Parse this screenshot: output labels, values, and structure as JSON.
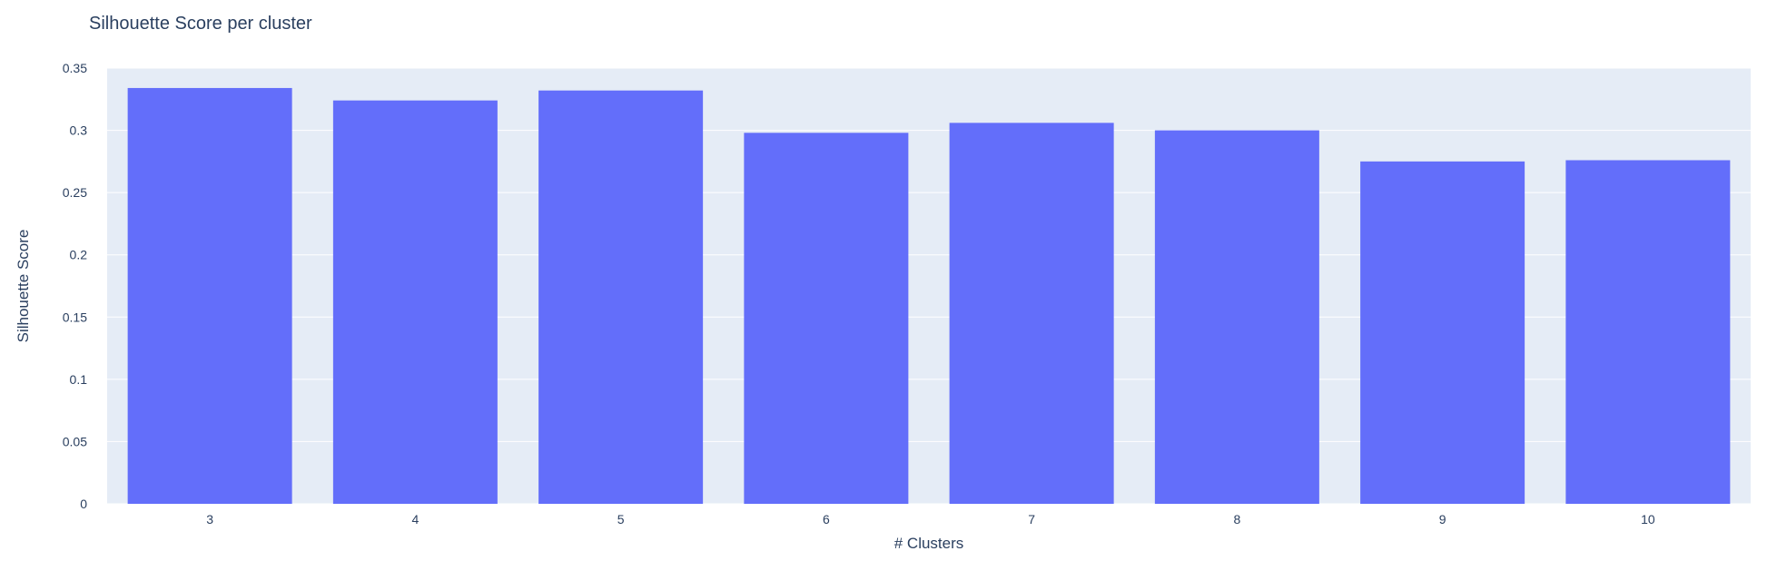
{
  "chart_data": {
    "type": "bar",
    "title": "Silhouette Score per cluster",
    "xlabel": "# Clusters",
    "ylabel": "Silhouette Score",
    "categories": [
      "3",
      "4",
      "5",
      "6",
      "7",
      "8",
      "9",
      "10"
    ],
    "values": [
      0.334,
      0.324,
      0.332,
      0.298,
      0.306,
      0.3,
      0.275,
      0.276
    ],
    "ylim": [
      0,
      0.35
    ],
    "yticks": [
      "0",
      "0.05",
      "0.1",
      "0.15",
      "0.2",
      "0.25",
      "0.3",
      "0.35"
    ],
    "grid": true,
    "bar_color": "#636efa",
    "plot_background": "#e5ecf6",
    "gridline_color": "#ffffff",
    "text_color": "#2a3f5f"
  }
}
